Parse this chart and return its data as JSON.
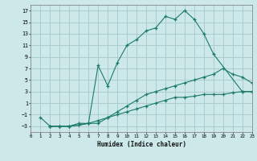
{
  "xlabel": "Humidex (Indice chaleur)",
  "bg_color": "#cce8e8",
  "grid_color": "#aacccc",
  "line_color": "#1a7a6a",
  "xlim": [
    0,
    23
  ],
  "ylim": [
    -4,
    18
  ],
  "xticks": [
    0,
    1,
    2,
    3,
    4,
    5,
    6,
    7,
    8,
    9,
    10,
    11,
    12,
    13,
    14,
    15,
    16,
    17,
    18,
    19,
    20,
    21,
    22,
    23
  ],
  "yticks": [
    -3,
    -1,
    1,
    3,
    5,
    7,
    9,
    11,
    13,
    15,
    17
  ],
  "line1_x": [
    1,
    2,
    3,
    4,
    5,
    6,
    7,
    8,
    9,
    10,
    11,
    12,
    13,
    14,
    15,
    16,
    17,
    18,
    19,
    22,
    23
  ],
  "line1_y": [
    -1.5,
    -3,
    -3,
    -3,
    -2.5,
    -2.5,
    7.5,
    4,
    8,
    11,
    12,
    13.5,
    14,
    16,
    15.5,
    17,
    15.5,
    13,
    9.5,
    3,
    3
  ],
  "line2_x": [
    2,
    3,
    4,
    5,
    6,
    7,
    8,
    9,
    10,
    11,
    12,
    13,
    14,
    15,
    16,
    17,
    18,
    19,
    20,
    21,
    22,
    23
  ],
  "line2_y": [
    -3,
    -3,
    -3,
    -2.8,
    -2.5,
    -2.5,
    -1.5,
    -0.5,
    0.5,
    1.5,
    2.5,
    3,
    3.5,
    4,
    4.5,
    5,
    5.5,
    6,
    7,
    6,
    5.5,
    4.5
  ],
  "line3_x": [
    2,
    3,
    4,
    5,
    6,
    7,
    8,
    9,
    10,
    11,
    12,
    13,
    14,
    15,
    16,
    17,
    18,
    19,
    20,
    21,
    22,
    23
  ],
  "line3_y": [
    -3,
    -3,
    -3,
    -2.8,
    -2.5,
    -2,
    -1.5,
    -1.0,
    -0.5,
    0.0,
    0.5,
    1.0,
    1.5,
    2.0,
    2.0,
    2.2,
    2.5,
    2.5,
    2.5,
    2.8,
    3.0,
    3.0
  ]
}
